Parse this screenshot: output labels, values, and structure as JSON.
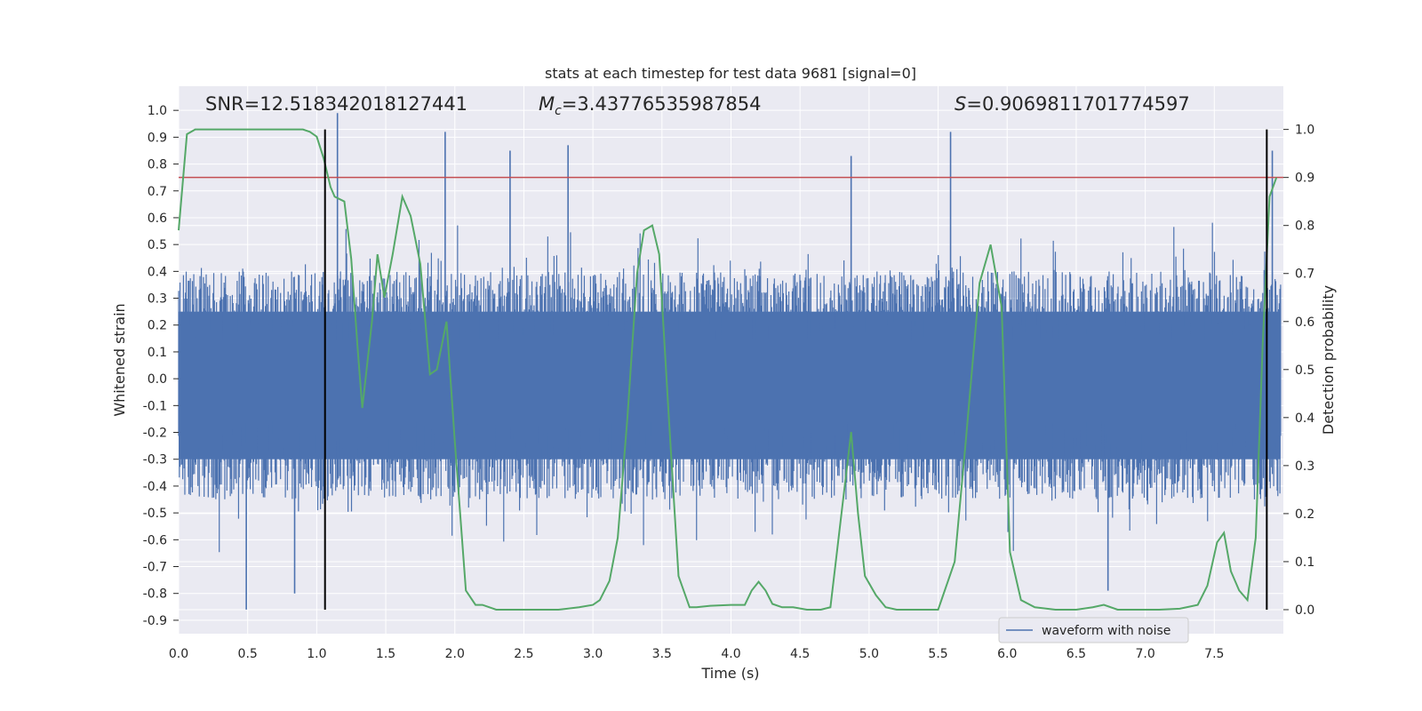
{
  "chart_data": {
    "type": "line",
    "title": "stats at each timestep for test data 9681 [signal=0]",
    "xlabel": "Time (s)",
    "ylabel": "Whitened strain",
    "ylabel_right": "Detection probability",
    "xlim": [
      0.0,
      8.0
    ],
    "ylim": [
      -0.95,
      1.09
    ],
    "ylim_right": [
      -0.05,
      1.09
    ],
    "x_ticks": [
      "0.0",
      "0.5",
      "1.0",
      "1.5",
      "2.0",
      "2.5",
      "3.0",
      "3.5",
      "4.0",
      "4.5",
      "5.0",
      "5.5",
      "6.0",
      "6.5",
      "7.0",
      "7.5"
    ],
    "y_ticks": [
      "1.0",
      "0.9",
      "0.8",
      "0.7",
      "0.6",
      "0.5",
      "0.4",
      "0.3",
      "0.2",
      "0.1",
      "0.0",
      "-0.1",
      "-0.2",
      "-0.3",
      "-0.4",
      "-0.5",
      "-0.6",
      "-0.7",
      "-0.8",
      "-0.9"
    ],
    "y_right_ticks": [
      "1.0",
      "0.9",
      "0.8",
      "0.7",
      "0.6",
      "0.5",
      "0.4",
      "0.3",
      "0.2",
      "0.1",
      "0.0"
    ],
    "annotations": {
      "snr": "SNR=12.518342018127441",
      "mc_symbol": "M",
      "mc_sub": "c",
      "mc_value": "=3.43776535987854",
      "s_symbol": "S",
      "s_value": "=0.9069811701774597"
    },
    "threshold": 0.9,
    "vertical_lines_x": [
      1.06,
      7.88
    ],
    "legend": {
      "label": "waveform with noise",
      "placement": "lower-right"
    },
    "colors": {
      "waveform": "#4c72b0",
      "probability": "#55a868",
      "threshold": "#c44e52",
      "vline": "#000000",
      "background": "#eaeaf2",
      "grid": "#ffffff"
    },
    "series": [
      {
        "name": "waveform with noise",
        "axis": "left",
        "description_values": {
          "envelope_upper_typical": 0.4,
          "envelope_lower_typical": -0.45,
          "peaks": [
            {
              "x": 1.15,
              "y": 0.99
            },
            {
              "x": 1.93,
              "y": 0.92
            },
            {
              "x": 2.4,
              "y": 0.85
            },
            {
              "x": 2.82,
              "y": 0.87
            },
            {
              "x": 4.87,
              "y": 0.83
            },
            {
              "x": 5.59,
              "y": 0.92
            },
            {
              "x": 7.92,
              "y": 0.85
            }
          ],
          "troughs": [
            {
              "x": 0.49,
              "y": -0.86
            },
            {
              "x": 0.84,
              "y": -0.8
            },
            {
              "x": 6.73,
              "y": -0.79
            }
          ]
        }
      },
      {
        "name": "",
        "axis": "right",
        "x": [
          0.0,
          0.06,
          0.12,
          0.2,
          0.3,
          0.5,
          0.7,
          0.9,
          0.95,
          1.0,
          1.05,
          1.1,
          1.13,
          1.2,
          1.25,
          1.3,
          1.33,
          1.4,
          1.44,
          1.49,
          1.55,
          1.62,
          1.68,
          1.75,
          1.82,
          1.87,
          1.94,
          2.0,
          2.08,
          2.15,
          2.2,
          2.3,
          2.45,
          2.6,
          2.75,
          2.9,
          3.0,
          3.05,
          3.12,
          3.18,
          3.25,
          3.32,
          3.37,
          3.43,
          3.48,
          3.55,
          3.62,
          3.7,
          3.75,
          3.85,
          4.0,
          4.1,
          4.15,
          4.2,
          4.25,
          4.3,
          4.37,
          4.45,
          4.55,
          4.65,
          4.72,
          4.8,
          4.87,
          4.92,
          4.97,
          5.05,
          5.12,
          5.2,
          5.3,
          5.5,
          5.62,
          5.7,
          5.8,
          5.88,
          5.96,
          6.02,
          6.1,
          6.2,
          6.35,
          6.5,
          6.62,
          6.7,
          6.8,
          6.95,
          7.1,
          7.25,
          7.38,
          7.45,
          7.52,
          7.57,
          7.62,
          7.68,
          7.74,
          7.8,
          7.85,
          7.9,
          7.95
        ],
        "values": [
          0.79,
          0.99,
          1.0,
          1.0,
          1.0,
          1.0,
          1.0,
          1.0,
          0.995,
          0.985,
          0.94,
          0.88,
          0.86,
          0.85,
          0.73,
          0.53,
          0.42,
          0.6,
          0.74,
          0.65,
          0.74,
          0.86,
          0.82,
          0.72,
          0.49,
          0.5,
          0.6,
          0.35,
          0.04,
          0.01,
          0.01,
          0.0,
          0.0,
          0.0,
          0.0,
          0.005,
          0.01,
          0.02,
          0.06,
          0.15,
          0.4,
          0.7,
          0.79,
          0.8,
          0.74,
          0.4,
          0.07,
          0.005,
          0.005,
          0.008,
          0.01,
          0.01,
          0.04,
          0.058,
          0.04,
          0.012,
          0.005,
          0.005,
          0.0,
          0.0,
          0.005,
          0.2,
          0.37,
          0.2,
          0.07,
          0.03,
          0.005,
          0.0,
          0.0,
          0.0,
          0.1,
          0.35,
          0.68,
          0.76,
          0.63,
          0.12,
          0.02,
          0.005,
          0.0,
          0.0,
          0.005,
          0.01,
          0.0,
          0.0,
          0.0,
          0.002,
          0.01,
          0.05,
          0.14,
          0.16,
          0.08,
          0.04,
          0.02,
          0.15,
          0.55,
          0.86,
          0.9
        ]
      }
    ]
  }
}
